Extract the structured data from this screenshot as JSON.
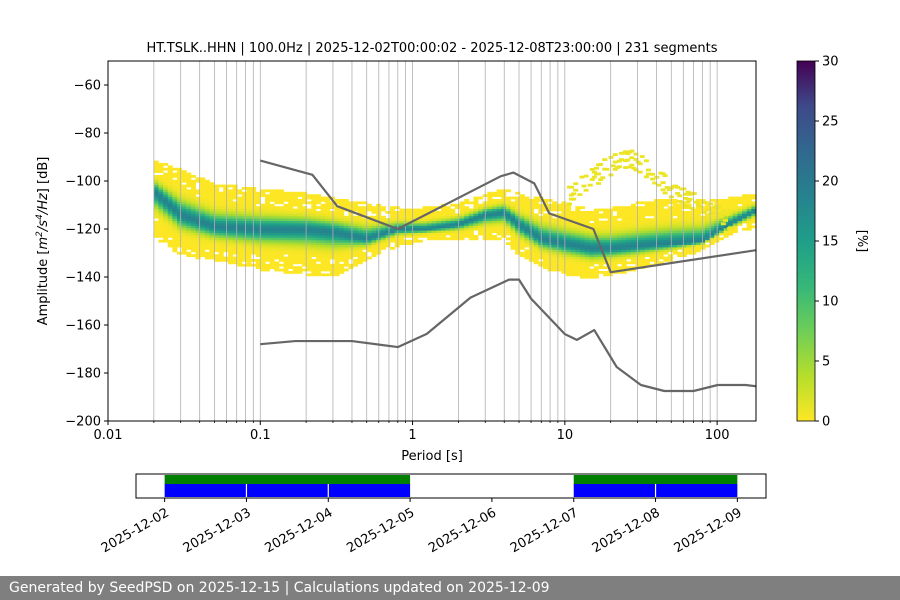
{
  "chart_data": [
    {
      "type": "heatmap",
      "title": "HT.TSLK..HHN | 100.0Hz | 2025-12-02T00:00:02 - 2025-12-08T23:00:00 | 231 segments",
      "xlabel": "Period [s]",
      "ylabel_parts": [
        "Amplitude [",
        "m",
        "2",
        "/",
        "s",
        "4",
        "/Hz",
        "] [dB]"
      ],
      "xscale": "log",
      "xlim": [
        0.01,
        180
      ],
      "ylim": [
        -200,
        -50
      ],
      "x_ticks": [
        0.01,
        0.1,
        1,
        10,
        100
      ],
      "x_tick_labels": [
        "0.01",
        "0.1",
        "1",
        "10",
        "100"
      ],
      "y_ticks": [
        -200,
        -180,
        -160,
        -140,
        -120,
        -100,
        -80,
        -60
      ],
      "y_tick_labels": [
        "−200",
        "−180",
        "−160",
        "−140",
        "−120",
        "−100",
        "−80",
        "−60"
      ],
      "grid": "vertical lines at log decade subdivisions",
      "colormap": "viridis_r",
      "colorbar": {
        "label": "[%]",
        "range": [
          0,
          30
        ],
        "ticks": [
          0,
          5,
          10,
          15,
          20,
          25,
          30
        ],
        "tick_labels": [
          "0",
          "5",
          "10",
          "15",
          "20",
          "25",
          "30"
        ]
      },
      "mode_curve": {
        "period": [
          0.02,
          0.03,
          0.05,
          0.1,
          0.2,
          0.3,
          0.5,
          0.8,
          1.2,
          2,
          3,
          4,
          5,
          7,
          10,
          15,
          20,
          30,
          50,
          80,
          120,
          180
        ],
        "db": [
          -104,
          -114,
          -119,
          -120,
          -120,
          -121,
          -124,
          -120,
          -120,
          -118,
          -114,
          -113,
          -118,
          -124,
          -126,
          -128,
          -128,
          -127,
          -126,
          -125,
          -118,
          -112
        ]
      },
      "spread": {
        "period": [
          0.02,
          0.03,
          0.05,
          0.1,
          0.2,
          0.3,
          0.5,
          0.8,
          1.2,
          2,
          3,
          4,
          5,
          7,
          10,
          15,
          20,
          30,
          50,
          80,
          120,
          180
        ],
        "upper_db": [
          -92,
          -96,
          -102,
          -104,
          -106,
          -108,
          -110,
          -112,
          -112,
          -110,
          -106,
          -104,
          -106,
          -108,
          -110,
          -112,
          -112,
          -110,
          -108,
          -108,
          -108,
          -106
        ],
        "lower_db": [
          -122,
          -130,
          -132,
          -136,
          -138,
          -139,
          -132,
          -126,
          -124,
          -124,
          -124,
          -124,
          -130,
          -135,
          -138,
          -140,
          -138,
          -136,
          -132,
          -128,
          -122,
          -118
        ]
      },
      "scatter_arc": {
        "period": [
          10,
          12,
          15,
          18,
          22,
          26,
          30,
          35,
          40,
          50,
          60,
          70,
          80,
          100,
          120
        ],
        "db": [
          -102,
          -98,
          -94,
          -90,
          -87,
          -86,
          -88,
          -91,
          -94,
          -100,
          -103,
          -105,
          -108,
          -110,
          -112
        ]
      },
      "nhnm": {
        "period": [
          0.1,
          0.22,
          0.32,
          0.8,
          3.8,
          4.6,
          6.3,
          7.9,
          15.4,
          20,
          354.8
        ],
        "db": [
          -91.5,
          -97.4,
          -110.5,
          -120.0,
          -98.0,
          -96.5,
          -101.0,
          -113.5,
          -120.0,
          -138.0,
          -126.0
        ]
      },
      "nlnm": {
        "period": [
          0.1,
          0.17,
          0.4,
          0.8,
          1.24,
          2.4,
          4.3,
          5.0,
          6.0,
          10.0,
          12.0,
          15.6,
          21.9,
          31.6,
          45.0,
          70.0,
          101.0,
          154.0,
          328.0
        ],
        "db": [
          -168.0,
          -166.7,
          -166.7,
          -169.2,
          -163.7,
          -148.6,
          -141.1,
          -141.1,
          -149.0,
          -163.8,
          -166.2,
          -162.1,
          -177.5,
          -185.0,
          -187.5,
          -187.5,
          -185.0,
          -185.0,
          -187.5
        ]
      }
    },
    {
      "type": "availability",
      "date_ticks": [
        "2025-12-02",
        "2025-12-03",
        "2025-12-04",
        "2025-12-05",
        "2025-12-06",
        "2025-12-07",
        "2025-12-08",
        "2025-12-09"
      ],
      "xlim_days": [
        -0.35,
        7.35
      ],
      "data_spans": [
        {
          "start": "2025-12-02",
          "end": "2025-12-05"
        },
        {
          "start": "2025-12-07",
          "end": "2025-12-09"
        }
      ],
      "day_breaks": [
        "2025-12-03",
        "2025-12-04",
        "2025-12-08"
      ],
      "top_band_color": "#008000",
      "bottom_band_color": "#0000ff"
    }
  ],
  "footer": {
    "text": "Generated by SeedPSD on 2025-12-15 | Calculations updated on 2025-12-09"
  }
}
